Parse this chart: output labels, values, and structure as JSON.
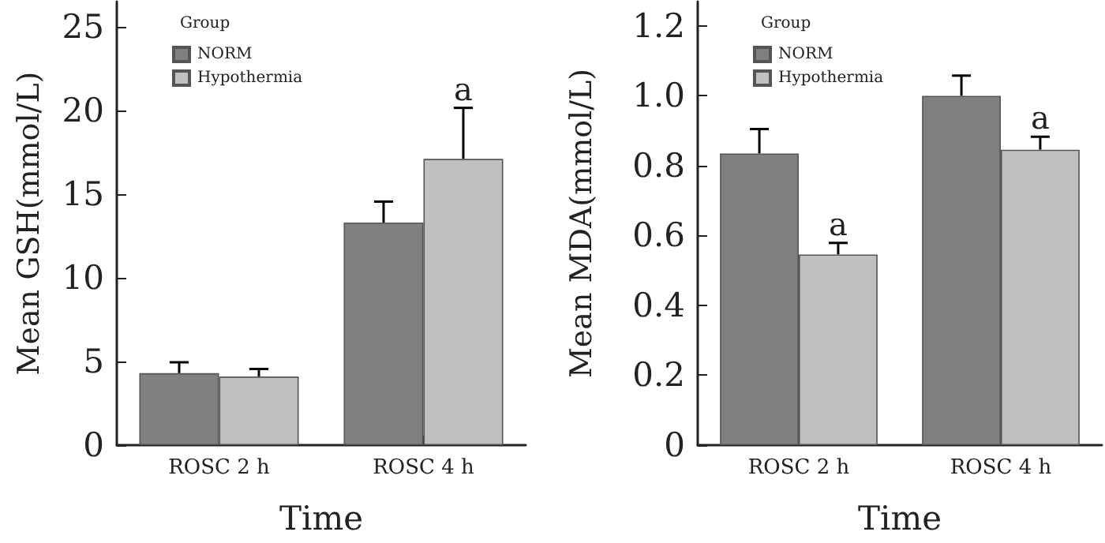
{
  "chart_data": [
    {
      "type": "bar",
      "categories": [
        "ROSC 2 h",
        "ROSC 4 h"
      ],
      "xlabel": "Time",
      "ylabel": "Mean GSH(mmol/L)",
      "legend_title": "Group",
      "legend": "top left",
      "grid": false,
      "series": [
        {
          "name": "NORM",
          "color": "#808080",
          "values": [
            4.3,
            13.3
          ],
          "errors": [
            [
              4.3,
              4.95
            ],
            [
              13.3,
              14.55
            ]
          ]
        },
        {
          "name": "Hypothermia",
          "color": "#c0c0c0",
          "values": [
            4.1,
            17.1
          ],
          "errors": [
            [
              4.1,
              4.55
            ],
            [
              17.1,
              20.15
            ]
          ],
          "value_labels": [
            null,
            "a"
          ]
        }
      ],
      "ylim": [
        0,
        26.5
      ],
      "yticks": [
        0,
        5,
        10,
        15,
        20,
        25
      ]
    },
    {
      "type": "bar",
      "categories": [
        "ROSC 2 h",
        "ROSC 4 h"
      ],
      "xlabel": "Time",
      "ylabel": "Mean MDA(mmol/L)",
      "legend_title": "Group",
      "legend": "top left",
      "grid": false,
      "series": [
        {
          "name": "NORM",
          "color": "#808080",
          "values": [
            0.835,
            1.0
          ],
          "errors": [
            [
              0.835,
              0.905
            ],
            [
              1.0,
              1.058
            ]
          ]
        },
        {
          "name": "Hypothermia",
          "color": "#c0c0c0",
          "values": [
            0.546,
            0.846
          ],
          "errors": [
            [
              0.546,
              0.579
            ],
            [
              0.846,
              0.883
            ]
          ],
          "value_labels": [
            "a",
            "a"
          ]
        }
      ],
      "ylim": [
        0,
        1.27
      ],
      "yticks": [
        0,
        0.2,
        0.4,
        0.6,
        0.8,
        {
          "value": 1,
          "label": "1.0"
        },
        1.2
      ]
    }
  ]
}
